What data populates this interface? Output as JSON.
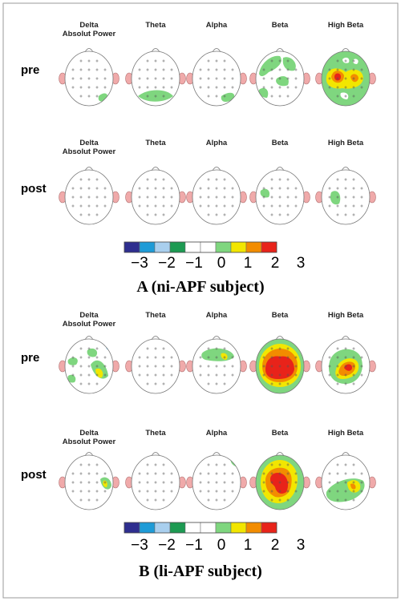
{
  "colors": {
    "scale": [
      "#2e2e8f",
      "#1e9bd7",
      "#a9cfee",
      "#1d9a52",
      "#ffffff",
      "#ffffff",
      "#7fd67f",
      "#f2e600",
      "#f28c00",
      "#e8231a"
    ],
    "ear": "#f0aaaa",
    "head_outline": "#777777",
    "frame": "#999999"
  },
  "bands": [
    "Delta\nAbsolut Power",
    "Theta",
    "Alpha",
    "Beta",
    "High Beta"
  ],
  "scale_ticks": [
    "−3",
    "−2",
    "−1",
    "0",
    "1",
    "2",
    "3"
  ],
  "panels": [
    {
      "caption": "A (ni-APF subject)",
      "rows": [
        {
          "label": "pre",
          "maps": [
            "delta-lowspot",
            "theta-lowgreen",
            "alpha-lowgreen",
            "beta-topgreen",
            "highbeta-strong"
          ]
        },
        {
          "label": "post",
          "maps": [
            "blank",
            "blank",
            "blank",
            "beta-leftspot",
            "highbeta-leftspot"
          ]
        }
      ]
    },
    {
      "caption": "B (li-APF subject)",
      "rows": [
        {
          "label": "pre",
          "maps": [
            "delta-spots",
            "blank",
            "alpha-topspot",
            "beta-full",
            "highbeta-center"
          ]
        },
        {
          "label": "post",
          "maps": [
            "delta-rightspot",
            "blank",
            "alpha-rightedge",
            "beta-strong",
            "highbeta-lowblob"
          ]
        }
      ]
    }
  ]
}
